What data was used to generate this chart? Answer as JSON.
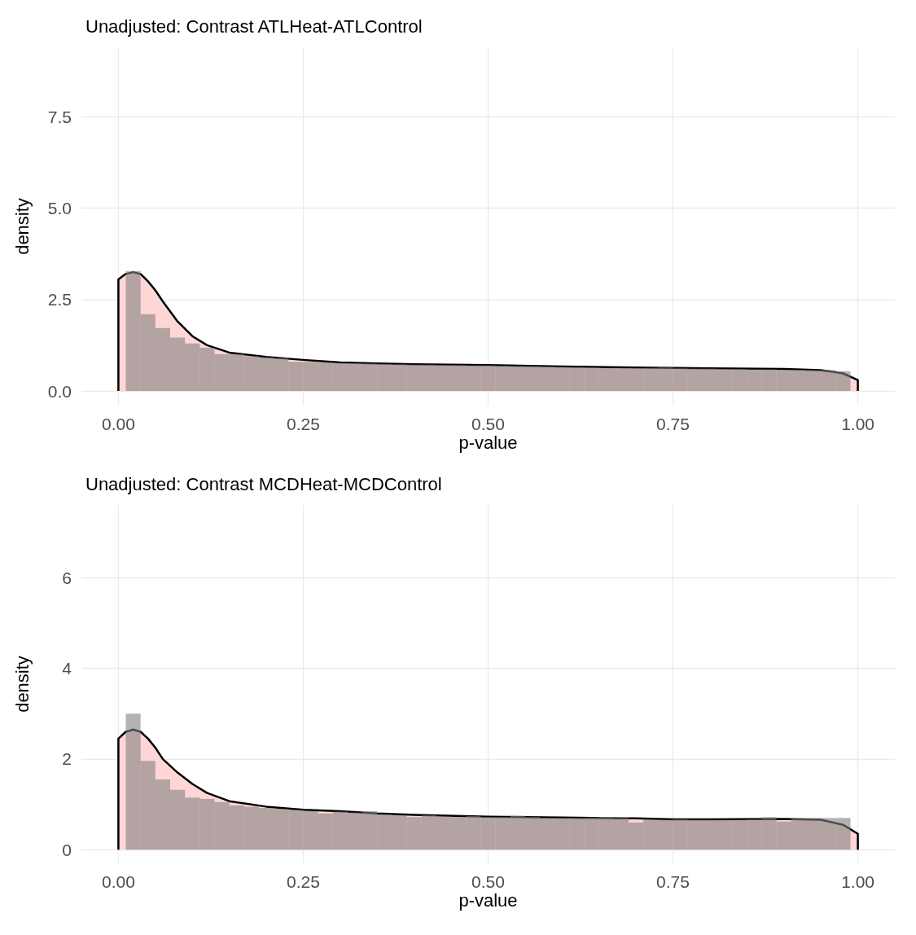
{
  "chart_data": [
    {
      "type": "histogram",
      "title": "Unadjusted: Contrast ATLHeat-ATLControl",
      "xlabel": "p-value",
      "ylabel": "density",
      "xlim": [
        -0.05,
        1.05
      ],
      "xticks": [
        {
          "value": 0,
          "label": "0.00"
        },
        {
          "value": 0.25,
          "label": "0.25"
        },
        {
          "value": 0.5,
          "label": "0.50"
        },
        {
          "value": 0.75,
          "label": "0.75"
        },
        {
          "value": 1,
          "label": "1.00"
        }
      ],
      "ylim": [
        -0.4,
        9.4
      ],
      "yticks": [
        {
          "value": 0,
          "label": "0.0"
        },
        {
          "value": 2.5,
          "label": "2.5"
        },
        {
          "value": 5,
          "label": "5.0"
        },
        {
          "value": 7.5,
          "label": "7.5"
        }
      ],
      "grid": true,
      "series": [
        {
          "type": "area",
          "color": "#ffd6d6",
          "x": [
            0,
            0,
            0.01,
            0.02,
            0.03,
            0.04,
            0.05,
            0.06,
            0.08,
            0.1,
            0.12,
            0.15,
            0.2,
            0.25,
            0.3,
            0.35,
            0.4,
            0.5,
            0.6,
            0.7,
            0.75,
            0.8,
            0.9,
            0.95,
            0.98,
            1,
            1
          ],
          "values": [
            0,
            3.05,
            3.2,
            3.25,
            3.2,
            3.0,
            2.75,
            2.45,
            1.9,
            1.5,
            1.25,
            1.05,
            0.93,
            0.85,
            0.78,
            0.75,
            0.73,
            0.71,
            0.67,
            0.64,
            0.63,
            0.62,
            0.6,
            0.57,
            0.48,
            0.3,
            0
          ]
        },
        {
          "type": "histogram",
          "color": "#808080",
          "bins": [
            0.01,
            0.03,
            0.05,
            0.07,
            0.09,
            0.11,
            0.13,
            0.15,
            0.17,
            0.19,
            0.21,
            0.23,
            0.25,
            0.27,
            0.29,
            0.31,
            0.33,
            0.35,
            0.37,
            0.39,
            0.41,
            0.43,
            0.45,
            0.47,
            0.49,
            0.51,
            0.53,
            0.55,
            0.57,
            0.59,
            0.61,
            0.63,
            0.65,
            0.67,
            0.69,
            0.71,
            0.73,
            0.75,
            0.77,
            0.79,
            0.81,
            0.83,
            0.85,
            0.87,
            0.89,
            0.91,
            0.93,
            0.95,
            0.97,
            0.99
          ],
          "values": [
            3.28,
            2.1,
            1.72,
            1.46,
            1.3,
            1.18,
            1.01,
            1.01,
            0.95,
            0.92,
            0.9,
            0.8,
            0.8,
            0.78,
            0.77,
            0.76,
            0.75,
            0.74,
            0.73,
            0.72,
            0.72,
            0.71,
            0.71,
            0.7,
            0.7,
            0.69,
            0.68,
            0.68,
            0.67,
            0.66,
            0.65,
            0.64,
            0.63,
            0.62,
            0.62,
            0.63,
            0.64,
            0.62,
            0.61,
            0.61,
            0.6,
            0.6,
            0.59,
            0.59,
            0.58,
            0.58,
            0.57,
            0.57,
            0.54
          ]
        }
      ]
    },
    {
      "type": "histogram",
      "title": "Unadjusted: Contrast MCDHeat-MCDControl",
      "xlabel": "p-value",
      "ylabel": "density",
      "xlim": [
        -0.05,
        1.05
      ],
      "xticks": [
        {
          "value": 0,
          "label": "0.00"
        },
        0.25,
        {
          "value": 0.5,
          "label": "0.50"
        },
        0.75,
        {
          "value": 1,
          "label": "1.00"
        }
      ],
      "ylim": [
        -0.3,
        7.6
      ],
      "yticks": [
        0,
        2,
        4,
        6
      ],
      "grid": true,
      "series": [
        {
          "type": "area",
          "color": "#ffd6d6",
          "x": [
            0,
            0,
            0.01,
            0.02,
            0.03,
            0.04,
            0.05,
            0.06,
            0.08,
            0.1,
            0.12,
            0.15,
            0.2,
            0.25,
            0.3,
            0.35,
            0.4,
            0.5,
            0.6,
            0.7,
            0.75,
            0.8,
            0.9,
            0.95,
            0.98,
            1,
            1
          ],
          "values": [
            0,
            2.45,
            2.6,
            2.65,
            2.6,
            2.45,
            2.25,
            2.0,
            1.7,
            1.45,
            1.25,
            1.07,
            0.95,
            0.88,
            0.85,
            0.8,
            0.77,
            0.73,
            0.71,
            0.69,
            0.67,
            0.67,
            0.68,
            0.66,
            0.55,
            0.35,
            0
          ]
        },
        {
          "type": "histogram",
          "color": "#808080",
          "bins": [
            0.01,
            0.03,
            0.05,
            0.07,
            0.09,
            0.11,
            0.13,
            0.15,
            0.17,
            0.19,
            0.21,
            0.23,
            0.25,
            0.27,
            0.29,
            0.31,
            0.33,
            0.35,
            0.37,
            0.39,
            0.41,
            0.43,
            0.45,
            0.47,
            0.49,
            0.51,
            0.53,
            0.55,
            0.57,
            0.59,
            0.61,
            0.63,
            0.65,
            0.67,
            0.69,
            0.71,
            0.73,
            0.75,
            0.77,
            0.79,
            0.81,
            0.83,
            0.85,
            0.87,
            0.89,
            0.91,
            0.93,
            0.95,
            0.97,
            0.99
          ],
          "values": [
            3.0,
            1.96,
            1.55,
            1.32,
            1.15,
            1.12,
            1.05,
            0.98,
            0.95,
            0.92,
            0.9,
            0.88,
            0.85,
            0.8,
            0.84,
            0.82,
            0.85,
            0.78,
            0.76,
            0.72,
            0.76,
            0.73,
            0.72,
            0.74,
            0.72,
            0.72,
            0.75,
            0.72,
            0.7,
            0.7,
            0.7,
            0.71,
            0.72,
            0.7,
            0.6,
            0.66,
            0.66,
            0.67,
            0.66,
            0.66,
            0.66,
            0.66,
            0.67,
            0.72,
            0.62,
            0.7,
            0.7,
            0.7,
            0.7
          ]
        }
      ]
    }
  ]
}
